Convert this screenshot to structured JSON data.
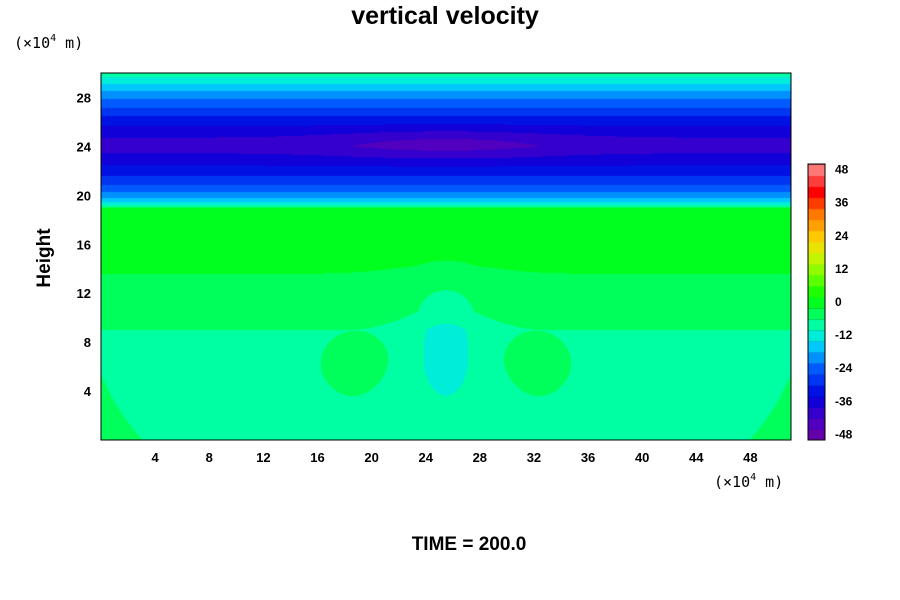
{
  "chart_data": {
    "type": "heatmap",
    "title": "vertical velocity",
    "ylabel": "Height",
    "xlabel": "",
    "x_unit": {
      "prefix": "(×10",
      "exponent": "4",
      "suffix": " m)"
    },
    "y_unit": {
      "prefix": "(×10",
      "exponent": "4",
      "suffix": " m)"
    },
    "footer": "TIME = 200.0",
    "xlim": [
      0,
      51
    ],
    "ylim": [
      0,
      30
    ],
    "x_ticks": [
      "4",
      "8",
      "12",
      "16",
      "20",
      "24",
      "28",
      "32",
      "36",
      "40",
      "44",
      "48"
    ],
    "y_ticks": [
      "4",
      "8",
      "12",
      "16",
      "20",
      "24",
      "28"
    ],
    "colorbar": {
      "min": -50,
      "max": 50,
      "interval": 4,
      "tick_labels": [
        "48",
        "36",
        "24",
        "12",
        "0",
        "-12",
        "-24",
        "-36",
        "-48"
      ],
      "colormap": "rainbow (purple → blue → cyan → green → yellow → orange → red → pink)"
    },
    "features": [
      {
        "kind": "uniform band",
        "value": -6,
        "y_range": [
          0,
          9
        ]
      },
      {
        "kind": "uniform band",
        "value": -3,
        "y_range": [
          9,
          13
        ]
      },
      {
        "kind": "uniform band",
        "value": -1,
        "y_range": [
          13,
          19
        ]
      },
      {
        "kind": "transition",
        "value_range": [
          -1,
          -40
        ],
        "y_range": [
          19,
          24
        ]
      },
      {
        "kind": "minimum",
        "value": -44,
        "x": 25.5,
        "y": 24.2
      },
      {
        "kind": "transition",
        "value_range": [
          -40,
          -8
        ],
        "y_range": [
          24,
          30
        ]
      },
      {
        "kind": "updraft core",
        "value": -12,
        "x": 25.5,
        "y": 6
      },
      {
        "kind": "local maxima",
        "value": -4,
        "x": [
          19.5,
          31.5
        ],
        "y": 7
      },
      {
        "kind": "local maxima",
        "value": 0,
        "x": [
          15,
          36
        ],
        "y": 16.5
      }
    ]
  }
}
